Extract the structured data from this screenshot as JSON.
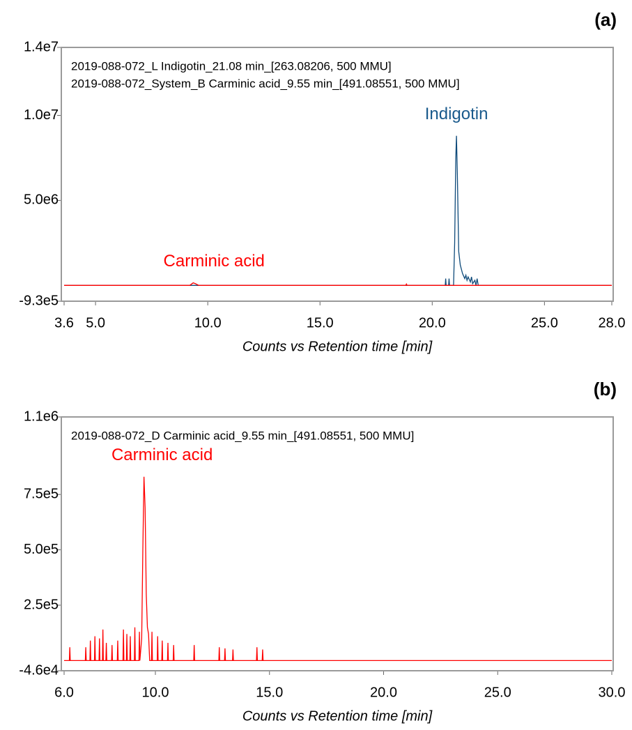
{
  "chart_data": [
    {
      "type": "line",
      "panel_label": "(a)",
      "xlabel": "Counts vs Retention time [min]",
      "xlim": [
        3.6,
        28.0
      ],
      "xticks": [
        {
          "value": 3.6,
          "label": "3.6"
        },
        {
          "value": 5.0,
          "label": "5.0"
        },
        {
          "value": 10.0,
          "label": "10.0"
        },
        {
          "value": 15.0,
          "label": "15.0"
        },
        {
          "value": 20.0,
          "label": "20.0"
        },
        {
          "value": 25.0,
          "label": "25.0"
        },
        {
          "value": 28.0,
          "label": "28.0"
        }
      ],
      "ylim": [
        -930000,
        14000000
      ],
      "yticks": [
        {
          "value": -930000,
          "label": "-9.3e5"
        },
        {
          "value": 5000000,
          "label": "5.0e6"
        },
        {
          "value": 10000000,
          "label": "1.0e7"
        },
        {
          "value": 14000000,
          "label": "1.4e7"
        }
      ],
      "series": [
        {
          "name": "2019-088-072_L Indigotin_21.08 min_[263.08206, 500 MMU]",
          "peak_label": "Indigotin",
          "color": "#0e4a7a",
          "label_color": "#1a5a8c",
          "x": [
            3.6,
            20.58,
            20.6,
            20.62,
            20.73,
            20.75,
            20.77,
            20.95,
            21.0,
            21.05,
            21.08,
            21.12,
            21.18,
            21.25,
            21.35,
            21.45,
            21.5,
            21.55,
            21.6,
            21.7,
            21.75,
            21.8,
            21.9,
            21.95,
            22.0,
            22.05,
            28.0
          ],
          "values": [
            0,
            0,
            400000,
            0,
            0,
            400000,
            0,
            0,
            2500000,
            7500000,
            8800000,
            6500000,
            2000000,
            1200000,
            700000,
            400000,
            600000,
            300000,
            500000,
            200000,
            500000,
            100000,
            300000,
            0,
            400000,
            0,
            0
          ]
        },
        {
          "name": "2019-088-072_System_B Carminic acid_9.55 min_[491.08551, 500 MMU]",
          "peak_label": "Carminic acid",
          "color": "#ff0000",
          "label_color": "#ff0000",
          "x": [
            3.6,
            9.2,
            9.35,
            9.45,
            9.6,
            18.82,
            18.85,
            18.88,
            28.0
          ],
          "values": [
            0,
            0,
            150000,
            100000,
            0,
            0,
            80000,
            0,
            0
          ]
        }
      ]
    },
    {
      "type": "line",
      "panel_label": "(b)",
      "xlabel": "Counts vs Retention time [min]",
      "xlim": [
        6.0,
        30.0
      ],
      "xticks": [
        {
          "value": 6.0,
          "label": "6.0"
        },
        {
          "value": 10.0,
          "label": "10.0"
        },
        {
          "value": 15.0,
          "label": "15.0"
        },
        {
          "value": 20.0,
          "label": "20.0"
        },
        {
          "value": 25.0,
          "label": "25.0"
        },
        {
          "value": 30.0,
          "label": "30.0"
        }
      ],
      "ylim": [
        -46000,
        1100000
      ],
      "yticks": [
        {
          "value": -46000,
          "label": "-4.6e4"
        },
        {
          "value": 250000,
          "label": "2.5e5"
        },
        {
          "value": 500000,
          "label": "5.0e5"
        },
        {
          "value": 750000,
          "label": "7.5e5"
        },
        {
          "value": 1100000,
          "label": "1.1e6"
        }
      ],
      "series": [
        {
          "name": "2019-088-072_D Carminic acid_9.55 min_[491.08551, 500 MMU]",
          "peak_label": "Carminic acid",
          "color": "#ff0000",
          "label_color": "#ff0000",
          "x": [
            6.0,
            6.23,
            6.25,
            6.27,
            6.93,
            6.95,
            6.97,
            7.13,
            7.15,
            7.17,
            7.33,
            7.35,
            7.37,
            7.53,
            7.55,
            7.57,
            7.68,
            7.7,
            7.72,
            7.83,
            7.85,
            7.87,
            8.08,
            8.1,
            8.12,
            8.33,
            8.35,
            8.37,
            8.58,
            8.6,
            8.62,
            8.73,
            8.75,
            8.77,
            8.88,
            8.9,
            8.92,
            9.08,
            9.1,
            9.12,
            9.28,
            9.3,
            9.32,
            9.4,
            9.45,
            9.5,
            9.55,
            9.6,
            9.65,
            9.7,
            9.75,
            9.83,
            9.85,
            9.87,
            10.08,
            10.1,
            10.12,
            10.28,
            10.3,
            10.32,
            10.53,
            10.55,
            10.57,
            10.78,
            10.8,
            10.82,
            11.68,
            11.7,
            11.72,
            12.78,
            12.8,
            12.82,
            13.03,
            13.05,
            13.07,
            13.38,
            13.4,
            13.42,
            14.43,
            14.45,
            14.47,
            14.68,
            14.7,
            14.72,
            30.0
          ],
          "values": [
            0,
            0,
            60000,
            0,
            0,
            60000,
            0,
            0,
            90000,
            0,
            0,
            110000,
            0,
            0,
            100000,
            0,
            0,
            140000,
            0,
            0,
            80000,
            0,
            0,
            70000,
            0,
            0,
            90000,
            0,
            0,
            140000,
            0,
            0,
            120000,
            0,
            0,
            110000,
            0,
            0,
            150000,
            0,
            0,
            130000,
            0,
            100000,
            500000,
            830000,
            690000,
            300000,
            150000,
            120000,
            0,
            0,
            130000,
            0,
            0,
            110000,
            0,
            0,
            90000,
            0,
            0,
            80000,
            0,
            0,
            70000,
            0,
            0,
            70000,
            0,
            0,
            60000,
            0,
            0,
            55000,
            0,
            0,
            50000,
            0,
            0,
            60000,
            0,
            0,
            50000,
            0,
            0
          ]
        }
      ]
    }
  ]
}
